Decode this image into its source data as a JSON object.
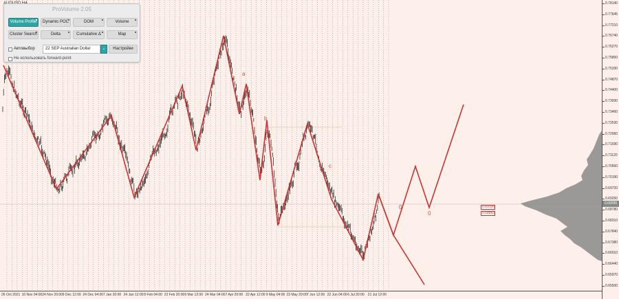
{
  "symbol": "AUDUSD,H4",
  "panel": {
    "title": "ProVolume 2.05",
    "buttons": [
      {
        "label": "Volume Profile",
        "active": true
      },
      {
        "label": "Dynamic POC",
        "active": false
      },
      {
        "label": "DOM",
        "active": false
      },
      {
        "label": "Volume",
        "active": false
      },
      {
        "label": "Cluster Search",
        "active": false
      },
      {
        "label": "Delta",
        "active": false
      },
      {
        "label": "Cumulative Δ",
        "active": false
      },
      {
        "label": "Map",
        "active": false
      }
    ],
    "auto_select_label": "Автовыбор",
    "instrument_value": "22 SEP Australian Dollar",
    "settings_label": "Настройки",
    "forward_point_label": "Не использовать forward-point"
  },
  "price_axis": {
    "labels": [
      "0.78140",
      "0.77645",
      "0.77210",
      "0.76740",
      "0.76270",
      "0.75800",
      "0.75330",
      "0.74870",
      "0.74400",
      "0.73930",
      "0.73460",
      "0.72530",
      "0.72060",
      "0.71590",
      "0.71120",
      "0.70660",
      "0.70190",
      "0.69720",
      "0.69250",
      "0.68780",
      "0.68310",
      "0.67840",
      "0.67380",
      "0.66910",
      "0.66440",
      "0.65970",
      "0.65500"
    ],
    "current": "0.69290"
  },
  "time_axis": {
    "labels": [
      "26 Oct 2021",
      "10 Nov 04:00",
      "24 Nov 20:00",
      "9 Dec 12:00",
      "24 Dec 04:00",
      "7 Jan 20:00",
      "24 Jan 12:00",
      "8 Feb 04:00",
      "22 Feb 20:00",
      "9 Mar 12:00",
      "24 Mar 04:00",
      "7 Apr 20:00",
      "22 Apr 12:00",
      "9 May 04:00",
      "23 May 20:00",
      "7 Jun 12:00",
      "22 Jun 04:00",
      "6 Jul 20:00",
      "21 Jul 12:00"
    ]
  },
  "wave_labels": {
    "a": "a",
    "b": "b",
    "c": "c",
    "zero1": "0",
    "zero2": "0"
  },
  "price_boxes": [
    "0.69156",
    "0.68883"
  ],
  "colors": {
    "background": "#fdf0ea",
    "wave": "#d32f2f",
    "accent": "#2fa5a3"
  }
}
